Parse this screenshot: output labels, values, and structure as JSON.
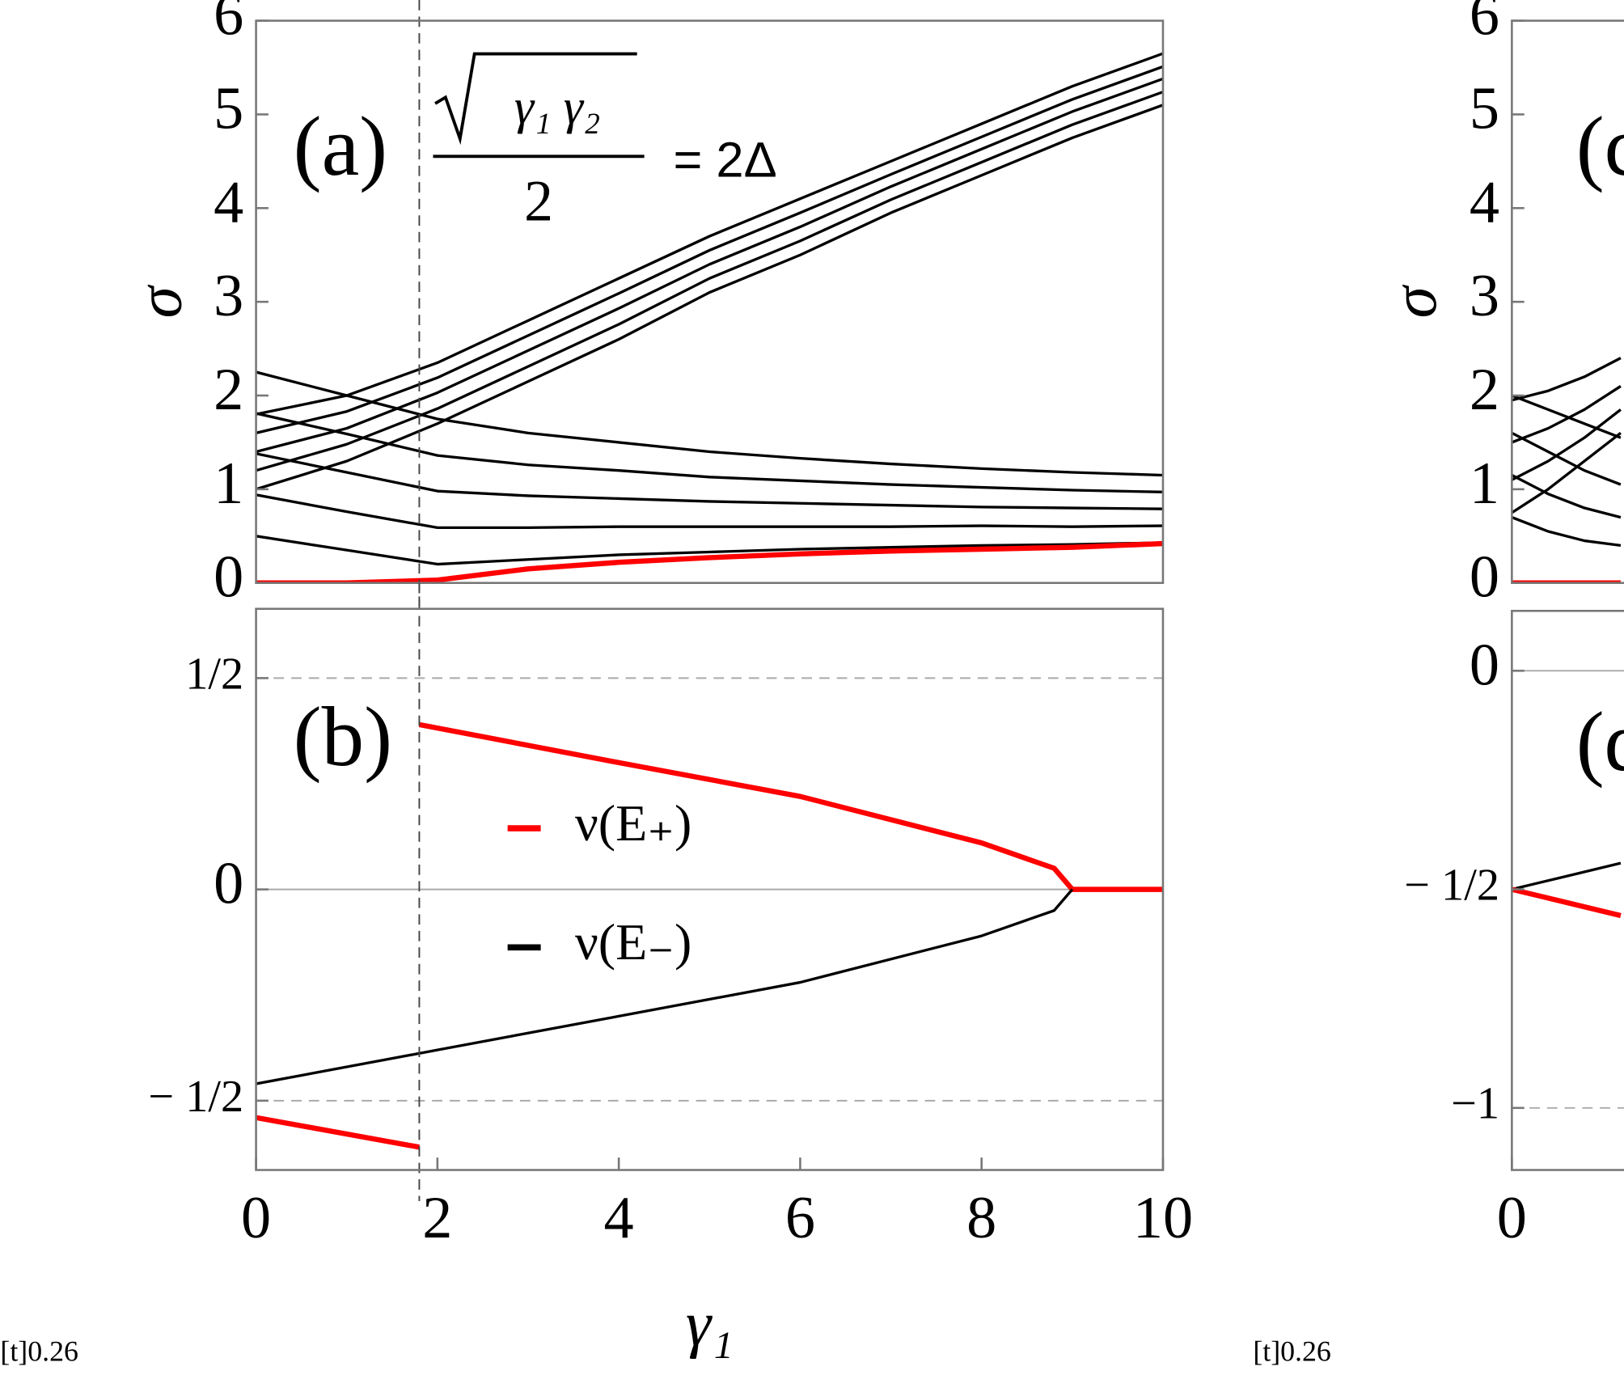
{
  "chart_data": [
    {
      "type": "line",
      "annotation": "(a)",
      "ylabel": "σ",
      "formula": {
        "numerator": "γ₁ γ₂",
        "denominator": "2",
        "rhs": "= 2Δ"
      },
      "x": [
        0,
        1,
        2,
        3,
        4,
        5,
        6,
        7,
        8,
        9,
        10
      ],
      "xlim": [
        0,
        10
      ],
      "ylim": [
        0,
        6
      ],
      "yticks": [
        0,
        1,
        2,
        3,
        4,
        5,
        6
      ],
      "vline": 1.8,
      "series": [
        {
          "color": "#000000",
          "values": [
            1.0,
            1.3,
            1.7,
            2.15,
            2.6,
            3.1,
            3.5,
            3.95,
            4.35,
            4.75,
            5.1
          ]
        },
        {
          "color": "#000000",
          "values": [
            1.2,
            1.48,
            1.86,
            2.31,
            2.76,
            3.25,
            3.65,
            4.09,
            4.49,
            4.89,
            5.24
          ]
        },
        {
          "color": "#000000",
          "values": [
            1.4,
            1.65,
            2.03,
            2.48,
            2.93,
            3.4,
            3.8,
            4.23,
            4.63,
            5.03,
            5.38
          ]
        },
        {
          "color": "#000000",
          "values": [
            1.6,
            1.83,
            2.19,
            2.64,
            3.09,
            3.55,
            3.95,
            4.36,
            4.76,
            5.16,
            5.51
          ]
        },
        {
          "color": "#000000",
          "values": [
            1.8,
            2.0,
            2.35,
            2.8,
            3.25,
            3.7,
            4.1,
            4.5,
            4.9,
            5.3,
            5.65
          ]
        },
        {
          "color": "#000000",
          "values": [
            0.5,
            0.35,
            0.2,
            0.25,
            0.3,
            0.33,
            0.36,
            0.38,
            0.4,
            0.41,
            0.43
          ]
        },
        {
          "color": "#000000",
          "values": [
            0.94,
            0.76,
            0.59,
            0.59,
            0.6,
            0.6,
            0.6,
            0.6,
            0.61,
            0.6,
            0.61
          ]
        },
        {
          "color": "#000000",
          "values": [
            1.38,
            1.18,
            0.98,
            0.93,
            0.9,
            0.87,
            0.85,
            0.83,
            0.81,
            0.8,
            0.79
          ]
        },
        {
          "color": "#000000",
          "values": [
            1.81,
            1.59,
            1.36,
            1.26,
            1.2,
            1.13,
            1.09,
            1.05,
            1.02,
            0.99,
            0.97
          ]
        },
        {
          "color": "#000000",
          "values": [
            2.25,
            2.0,
            1.75,
            1.6,
            1.5,
            1.4,
            1.33,
            1.27,
            1.22,
            1.18,
            1.15
          ]
        },
        {
          "color": "#ff0000",
          "values": [
            0,
            0,
            0.03,
            0.15,
            0.22,
            0.27,
            0.31,
            0.34,
            0.36,
            0.38,
            0.42
          ]
        }
      ]
    },
    {
      "type": "line",
      "annotation": "(b)",
      "xlabel": "γ₁",
      "legend": "center",
      "xlim": [
        0,
        10
      ],
      "xticks": [
        0,
        2,
        4,
        6,
        8,
        10
      ],
      "ylim": [
        -0.664,
        0.664
      ],
      "yticks": [
        {
          "value": -0.5,
          "label": "− 1/2"
        },
        0,
        {
          "value": 0.5,
          "label": "1/2"
        }
      ],
      "dashed_lines": [
        -0.5,
        0.5
      ],
      "solid_lines": [
        0
      ],
      "vline": 1.8,
      "series": [
        {
          "name": "ν(E₊)",
          "color": "#ff0000",
          "x": [
            0,
            1.8,
            1.8,
            1.8,
            4,
            6,
            8,
            8.8,
            9,
            10
          ],
          "values": [
            -0.54,
            -0.61,
            null,
            0.39,
            0.3,
            0.22,
            0.11,
            0.05,
            0,
            0
          ]
        },
        {
          "name": "ν(E₋)",
          "color": "#000000",
          "x": [
            0,
            2,
            4,
            6,
            8,
            8.8,
            9
          ],
          "values": [
            -0.46,
            -0.38,
            -0.3,
            -0.22,
            -0.11,
            -0.05,
            0
          ]
        }
      ]
    },
    {
      "type": "line",
      "annotation": "(c)",
      "ylabel": "σ",
      "x": [
        0,
        0.4,
        0.8,
        1.2
      ],
      "xlim": [
        0,
        10
      ],
      "ylim": [
        0,
        6
      ],
      "yticks": [
        0,
        1,
        2,
        3,
        4,
        5,
        6
      ],
      "series": [
        {
          "color": "#000000",
          "values": [
            0.75,
            1.0,
            1.3,
            1.6
          ]
        },
        {
          "color": "#000000",
          "values": [
            1.1,
            1.3,
            1.55,
            1.85
          ]
        },
        {
          "color": "#000000",
          "values": [
            1.5,
            1.65,
            1.85,
            2.1
          ]
        },
        {
          "color": "#000000",
          "values": [
            1.95,
            2.05,
            2.2,
            2.4
          ]
        },
        {
          "color": "#000000",
          "values": [
            2.0,
            1.85,
            1.7,
            1.55
          ]
        },
        {
          "color": "#000000",
          "values": [
            1.6,
            1.4,
            1.2,
            1.05
          ]
        },
        {
          "color": "#000000",
          "values": [
            1.15,
            0.95,
            0.8,
            0.7
          ]
        },
        {
          "color": "#000000",
          "values": [
            0.7,
            0.55,
            0.45,
            0.4
          ]
        },
        {
          "color": "#ff0000",
          "values": [
            0,
            0,
            0,
            0
          ]
        }
      ]
    },
    {
      "type": "line",
      "annotation": "(d)",
      "x": [
        0,
        0.6,
        1.2
      ],
      "xlim": [
        0,
        10
      ],
      "xticks": [
        0
      ],
      "ylim": [
        -1.142,
        0.137
      ],
      "yticks": [
        {
          "value": -1,
          "label": "−1"
        },
        {
          "value": -0.5,
          "label": "− 1/2"
        },
        0
      ],
      "dashed_lines": [
        -1
      ],
      "solid_lines": [
        0
      ],
      "series": [
        {
          "color": "#000000",
          "values": [
            -0.5,
            -0.47,
            -0.44
          ]
        },
        {
          "color": "#ff0000",
          "values": [
            -0.5,
            -0.53,
            -0.56
          ]
        }
      ]
    }
  ],
  "captions": [
    "[t]0.26",
    "[t]0.26"
  ]
}
